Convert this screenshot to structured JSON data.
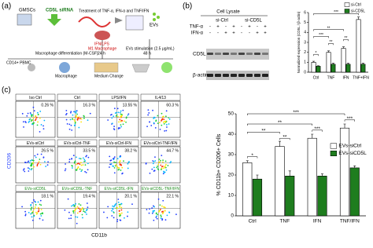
{
  "panel_a": {
    "label": "(a)",
    "gmscs": "GMSCs",
    "sirna": "CD5L siRNA",
    "treatment": "Treatment of TNF-α, IFN-α and TNF/IFN",
    "evs": "EVs",
    "m1_stim": "IFN/LPS",
    "m1": "M1 Macrophage",
    "m1_time": "24 h",
    "differentiation": "Macrophage differentiation (M-CSF)",
    "stimulation": "EVs stimulation (2.5 μg/mL)",
    "stim_time": "48 h",
    "pbmc": "CD14+ PBMC",
    "macrophage": "Macrophage",
    "medium": "Medium Change"
  },
  "panel_b": {
    "label": "(b)",
    "title": "Cell Lysate",
    "groups": [
      "si-Ctrl",
      "si-CD5L"
    ],
    "row_labels": [
      "TNF-α",
      "IFN-α"
    ],
    "signs": [
      [
        "-",
        "+",
        "-",
        "+",
        "-",
        "+",
        "-",
        "+"
      ],
      [
        "-",
        "-",
        "+",
        "+",
        "-",
        "-",
        "+",
        "+"
      ]
    ],
    "bands": [
      "CD5L",
      "β-actin"
    ]
  },
  "panel_c": {
    "label": "(c)",
    "y_axis": "CD206",
    "x_axis": "CD11b",
    "plots": [
      {
        "name": "Iso Ctrl",
        "percent": "0.26 %"
      },
      {
        "name": "Ctrl",
        "percent": "16.3 %"
      },
      {
        "name": "LPS/IFN",
        "percent": "13.55 %"
      },
      {
        "name": "IL4/13",
        "percent": "60.3 %"
      },
      {
        "name": "EVs-siCtrl",
        "percent": "26.5 %"
      },
      {
        "name": "EVs-siCtrl-TNF",
        "percent": "33.5 %"
      },
      {
        "name": "EVs-siCtrl-IFN",
        "percent": "38.2 %"
      },
      {
        "name": "EVs-siCtrl-TNF/IFN",
        "percent": "44.7 %"
      },
      {
        "name": "EVs-siCD5L",
        "percent": "18.1 %"
      },
      {
        "name": "EVs-siCD5L-TNF",
        "percent": "19.4 %"
      },
      {
        "name": "EVs-siCD5L-IFN",
        "percent": "20.1 %"
      },
      {
        "name": "EVs-siCD5L-TNF/IFN",
        "percent": "22.1 %"
      }
    ]
  },
  "chart_data": [
    {
      "type": "bar",
      "ylabel": "Normalized expression (CD5L / β-actin)",
      "categories": [
        "Ctrl",
        "TNF",
        "IFN",
        "TNF+IFN"
      ],
      "series": [
        {
          "name": "si-Ctrl",
          "color": "#ffffff",
          "values": [
            1.0,
            2.0,
            2.4,
            5.3
          ],
          "errors": [
            0.1,
            0.15,
            0.15,
            0.25
          ]
        },
        {
          "name": "si-CD5L",
          "color": "#1e7d1e",
          "values": [
            0.6,
            0.8,
            0.8,
            0.8
          ],
          "errors": [
            0.05,
            0.1,
            0.1,
            0.1
          ]
        }
      ],
      "ylim": [
        0,
        6
      ],
      "yticks": [
        0,
        1,
        2,
        3,
        4,
        5,
        6
      ],
      "legend": "top-right",
      "annotations": [
        "*",
        "**",
        "**",
        "***",
        "**",
        "***"
      ]
    },
    {
      "type": "bar",
      "ylabel": "% CD11b+ CD206+ Cells",
      "categories": [
        "Ctrl",
        "TNF",
        "IFN",
        "TNF/IFN"
      ],
      "series": [
        {
          "name": "EVs-siCtrl",
          "color": "#ffffff",
          "values": [
            26,
            34,
            38,
            43
          ],
          "errors": [
            1,
            2.5,
            2,
            2
          ]
        },
        {
          "name": "EVs-siCD5L",
          "color": "#1e7d1e",
          "values": [
            18,
            19.5,
            19.5,
            23.5
          ],
          "errors": [
            2,
            2.5,
            1,
            1
          ]
        }
      ],
      "ylim": [
        0,
        50
      ],
      "yticks": [
        0,
        10,
        20,
        30,
        40,
        50
      ],
      "legend": "top-right",
      "annotations": [
        "*",
        "**",
        "***",
        "***",
        "**",
        "**",
        "***"
      ]
    }
  ]
}
